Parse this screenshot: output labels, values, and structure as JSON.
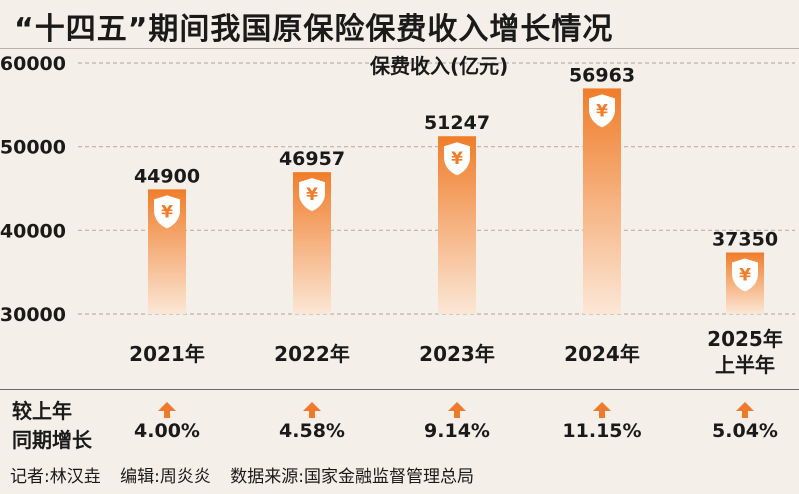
{
  "title": "“十四五”期间我国原保险保费收入增长情况",
  "chart_data": {
    "type": "bar",
    "unit_label": "保费收入(亿元)",
    "categories": [
      "2021年",
      "2022年",
      "2023年",
      "2024年",
      "2025年上半年"
    ],
    "category_lines": [
      [
        "2021年"
      ],
      [
        "2022年"
      ],
      [
        "2023年"
      ],
      [
        "2024年"
      ],
      [
        "2025年",
        "上半年"
      ]
    ],
    "values": [
      44900,
      46957,
      51247,
      56963,
      37350
    ],
    "value_labels": [
      "44900",
      "46957",
      "51247",
      "56963",
      "37350"
    ],
    "yticks": [
      30000,
      40000,
      50000,
      60000
    ],
    "ylim": [
      30000,
      60000
    ],
    "grid": true,
    "bar_icon": "yen-shield-icon",
    "colors": {
      "bar_top": "#f07d2a",
      "bar_bottom": "#fbe7d6",
      "grid": "#b9b2aa",
      "arrow": "#ee7a2c"
    }
  },
  "growth": {
    "label_lines": [
      "较上年",
      "同期增长"
    ],
    "icon": "up-arrow-icon",
    "values": [
      "4.00%",
      "4.58%",
      "9.14%",
      "11.15%",
      "5.04%"
    ]
  },
  "credits": {
    "reporter": "记者:林汉垚",
    "editor": "编辑:周炎炎",
    "source": "数据来源:国家金融监督管理总局"
  }
}
